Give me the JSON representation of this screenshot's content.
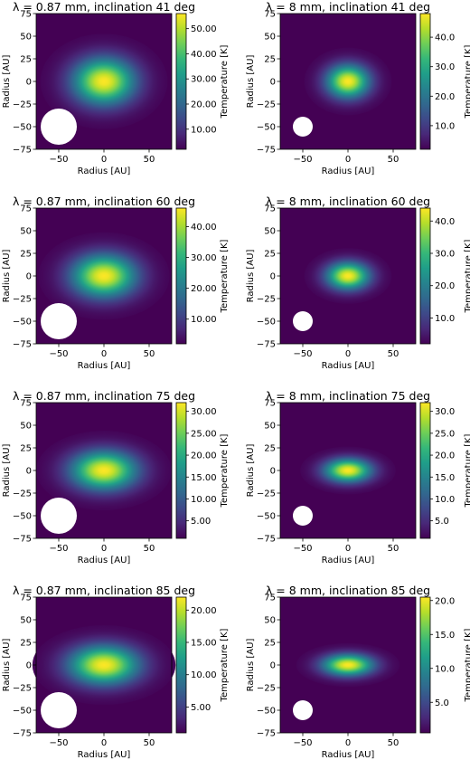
{
  "colors": {
    "viridis": [
      "#440154",
      "#482878",
      "#3e4989",
      "#31688e",
      "#26828e",
      "#1f9e89",
      "#35b779",
      "#6ece58",
      "#b5de2b",
      "#fde725"
    ],
    "beam": "#ffffff"
  },
  "chart_data": [
    {
      "type": "heatmap",
      "title": "λ = 0.87 mm, inclination 41 deg",
      "xlabel": "Radius [AU]",
      "ylabel": "Radius [AU]",
      "colorbar_label": "Temperature [K]",
      "xlim": [
        -75,
        75
      ],
      "ylim": [
        -75,
        75
      ],
      "x_ticks": [
        "−50",
        "0",
        "50"
      ],
      "y_ticks": [
        "75",
        "50",
        "25",
        "0",
        "−25",
        "−50",
        "−75"
      ],
      "cbar_ticks": [
        {
          "value": 10,
          "label": "10.00"
        },
        {
          "value": 20,
          "label": "20.00"
        },
        {
          "value": 30,
          "label": "30.00"
        },
        {
          "value": 40,
          "label": "40.00"
        },
        {
          "value": 50,
          "label": "50.00"
        }
      ],
      "cbar_range": [
        2,
        56
      ],
      "peak_value": 56,
      "source_sigma_au": [
        32,
        24
      ],
      "beam": {
        "x": -50,
        "y": -50,
        "radius": 20
      }
    },
    {
      "type": "heatmap",
      "title": "λ = 8 mm, inclination 41 deg",
      "xlabel": "Radius [AU]",
      "ylabel": "Radius [AU]",
      "colorbar_label": "Temperature [K]",
      "xlim": [
        -75,
        75
      ],
      "ylim": [
        -75,
        75
      ],
      "x_ticks": [
        "−50",
        "0",
        "50"
      ],
      "y_ticks": [
        "75",
        "50",
        "25",
        "0",
        "−25",
        "−50",
        "−75"
      ],
      "cbar_ticks": [
        {
          "value": 10,
          "label": "10.0"
        },
        {
          "value": 20,
          "label": "20.0"
        },
        {
          "value": 30,
          "label": "30.0"
        },
        {
          "value": 40,
          "label": "40.0"
        }
      ],
      "cbar_range": [
        2,
        48
      ],
      "peak_value": 48,
      "source_sigma_au": [
        22,
        17
      ],
      "beam": {
        "x": -50,
        "y": -50,
        "radius": 11
      }
    },
    {
      "type": "heatmap",
      "title": "λ = 0.87 mm, inclination 60 deg",
      "xlabel": "Radius [AU]",
      "ylabel": "Radius [AU]",
      "colorbar_label": "Temperature [K]",
      "xlim": [
        -75,
        75
      ],
      "ylim": [
        -75,
        75
      ],
      "x_ticks": [
        "−50",
        "0",
        "50"
      ],
      "y_ticks": [
        "75",
        "50",
        "25",
        "0",
        "−25",
        "−50",
        "−75"
      ],
      "cbar_ticks": [
        {
          "value": 10,
          "label": "10.00"
        },
        {
          "value": 20,
          "label": "20.00"
        },
        {
          "value": 30,
          "label": "30.00"
        },
        {
          "value": 40,
          "label": "40.00"
        }
      ],
      "cbar_range": [
        2,
        46
      ],
      "peak_value": 46,
      "source_sigma_au": [
        33,
        22
      ],
      "beam": {
        "x": -50,
        "y": -50,
        "radius": 20
      }
    },
    {
      "type": "heatmap",
      "title": "λ = 8 mm, inclination 60 deg",
      "xlabel": "Radius [AU]",
      "ylabel": "Radius [AU]",
      "colorbar_label": "Temperature [K]",
      "xlim": [
        -75,
        75
      ],
      "ylim": [
        -75,
        75
      ],
      "x_ticks": [
        "−50",
        "0",
        "50"
      ],
      "y_ticks": [
        "75",
        "50",
        "25",
        "0",
        "−25",
        "−50",
        "−75"
      ],
      "cbar_ticks": [
        {
          "value": 10,
          "label": "10.0"
        },
        {
          "value": 20,
          "label": "20.0"
        },
        {
          "value": 30,
          "label": "30.0"
        },
        {
          "value": 40,
          "label": "40.0"
        }
      ],
      "cbar_range": [
        2,
        44
      ],
      "peak_value": 44,
      "source_sigma_au": [
        22,
        14
      ],
      "beam": {
        "x": -50,
        "y": -50,
        "radius": 11
      }
    },
    {
      "type": "heatmap",
      "title": "λ = 0.87 mm, inclination 75 deg",
      "xlabel": "Radius [AU]",
      "ylabel": "Radius [AU]",
      "colorbar_label": "Temperature [K]",
      "xlim": [
        -75,
        75
      ],
      "ylim": [
        -75,
        75
      ],
      "x_ticks": [
        "−50",
        "0",
        "50"
      ],
      "y_ticks": [
        "75",
        "50",
        "25",
        "0",
        "−25",
        "−50",
        "−75"
      ],
      "cbar_ticks": [
        {
          "value": 5,
          "label": "5.00"
        },
        {
          "value": 10,
          "label": "10.00"
        },
        {
          "value": 15,
          "label": "15.00"
        },
        {
          "value": 20,
          "label": "20.00"
        },
        {
          "value": 25,
          "label": "25.00"
        },
        {
          "value": 30,
          "label": "30.00"
        }
      ],
      "cbar_range": [
        1,
        32
      ],
      "peak_value": 32,
      "source_sigma_au": [
        34,
        20
      ],
      "beam": {
        "x": -50,
        "y": -50,
        "radius": 20
      }
    },
    {
      "type": "heatmap",
      "title": "λ = 8 mm, inclination 75 deg",
      "xlabel": "Radius [AU]",
      "ylabel": "Radius [AU]",
      "colorbar_label": "Temperature [K]",
      "xlim": [
        -75,
        75
      ],
      "ylim": [
        -75,
        75
      ],
      "x_ticks": [
        "−50",
        "0",
        "50"
      ],
      "y_ticks": [
        "75",
        "50",
        "25",
        "0",
        "−25",
        "−50",
        "−75"
      ],
      "cbar_ticks": [
        {
          "value": 5,
          "label": "5.0"
        },
        {
          "value": 10,
          "label": "10.0"
        },
        {
          "value": 15,
          "label": "15.0"
        },
        {
          "value": 20,
          "label": "20.0"
        },
        {
          "value": 25,
          "label": "25.0"
        },
        {
          "value": 30,
          "label": "30.0"
        }
      ],
      "cbar_range": [
        1,
        32
      ],
      "peak_value": 32,
      "source_sigma_au": [
        24,
        12
      ],
      "beam": {
        "x": -50,
        "y": -50,
        "radius": 11
      }
    },
    {
      "type": "heatmap",
      "title": "λ = 0.87 mm, inclination 85 deg",
      "xlabel": "Radius [AU]",
      "ylabel": "Radius [AU]",
      "colorbar_label": "Temperature [K]",
      "xlim": [
        -75,
        75
      ],
      "ylim": [
        -75,
        75
      ],
      "x_ticks": [
        "−50",
        "0",
        "50"
      ],
      "y_ticks": [
        "75",
        "50",
        "25",
        "0",
        "−25",
        "−50",
        "−75"
      ],
      "cbar_ticks": [
        {
          "value": 5,
          "label": "5.00"
        },
        {
          "value": 10,
          "label": "10.00"
        },
        {
          "value": 15,
          "label": "15.00"
        },
        {
          "value": 20,
          "label": "20.00"
        }
      ],
      "cbar_range": [
        1,
        22
      ],
      "peak_value": 22,
      "source_sigma_au": [
        36,
        20
      ],
      "beam": {
        "x": -50,
        "y": -50,
        "radius": 20
      }
    },
    {
      "type": "heatmap",
      "title": "λ = 8 mm, inclination 85 deg",
      "xlabel": "Radius [AU]",
      "ylabel": "Radius [AU]",
      "colorbar_label": "Temperature [K]",
      "xlim": [
        -75,
        75
      ],
      "ylim": [
        -75,
        75
      ],
      "x_ticks": [
        "−50",
        "0",
        "50"
      ],
      "y_ticks": [
        "75",
        "50",
        "25",
        "0",
        "−25",
        "−50",
        "−75"
      ],
      "cbar_ticks": [
        {
          "value": 5,
          "label": "5.0"
        },
        {
          "value": 10,
          "label": "10.0"
        },
        {
          "value": 15,
          "label": "15.0"
        },
        {
          "value": 20,
          "label": "20.0"
        }
      ],
      "cbar_range": [
        0.5,
        20.5
      ],
      "peak_value": 20.5,
      "source_sigma_au": [
        26,
        11
      ],
      "beam": {
        "x": -50,
        "y": -50,
        "radius": 11
      }
    }
  ]
}
